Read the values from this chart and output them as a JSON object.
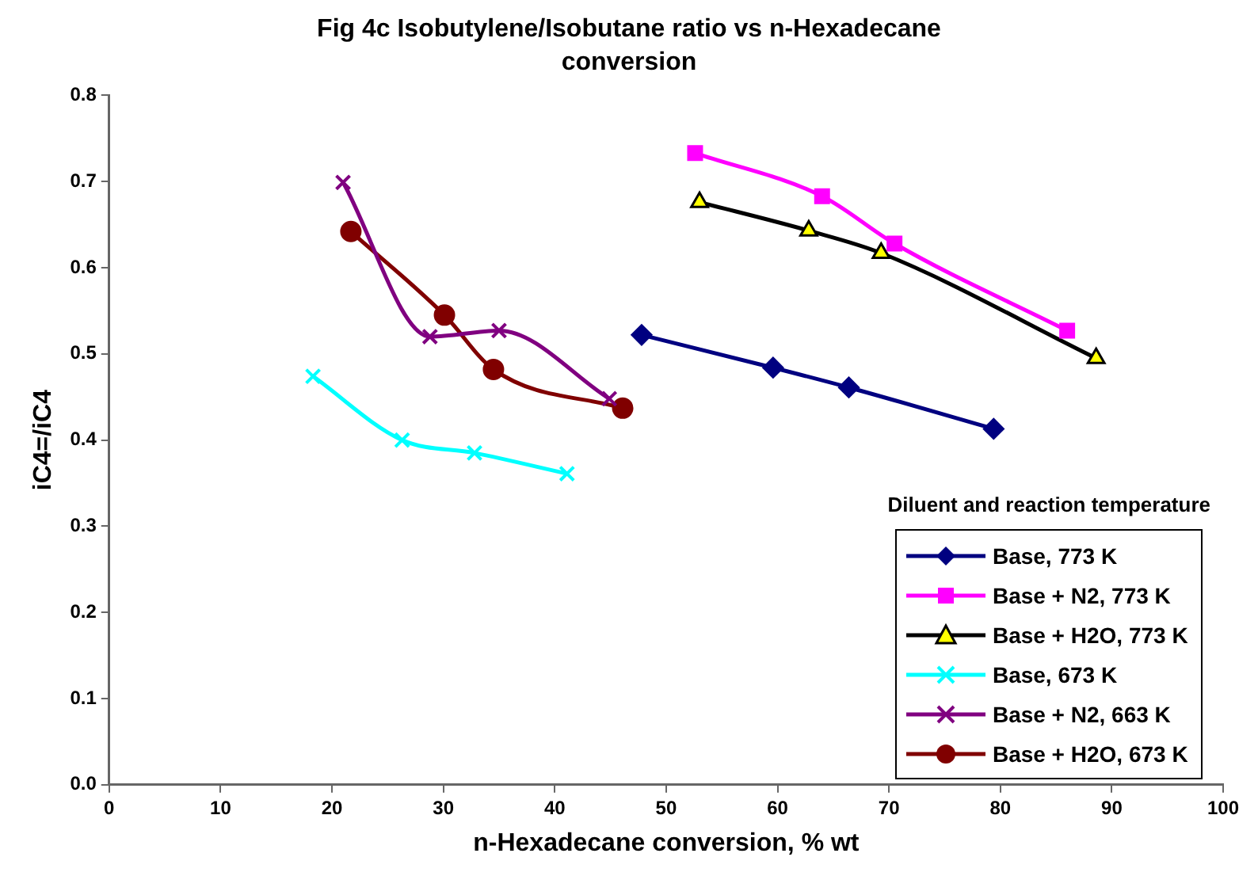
{
  "chart_data": {
    "type": "line",
    "title": "Fig 4c Isobutylene/Isobutane ratio vs n-Hexadecane conversion",
    "xlabel": "n-Hexadecane conversion, % wt",
    "ylabel": "iC4=/iC4",
    "legend_title": "Diluent and reaction temperature",
    "legend": "bottom right",
    "grid": false,
    "xlim": [
      0,
      100
    ],
    "xticks": [
      0,
      10,
      20,
      30,
      40,
      50,
      60,
      70,
      80,
      90,
      100
    ],
    "ylim": [
      0,
      0.8
    ],
    "yticks": [
      {
        "value": 0,
        "label": "0.0"
      },
      {
        "value": 0.1,
        "label": "0.1"
      },
      {
        "value": 0.2,
        "label": "0.2"
      },
      {
        "value": 0.3,
        "label": "0.3"
      },
      {
        "value": 0.4,
        "label": "0.4"
      },
      {
        "value": 0.5,
        "label": "0.5"
      },
      {
        "value": 0.6,
        "label": "0.6"
      },
      {
        "value": 0.7,
        "label": "0.7"
      },
      {
        "value": 0.8,
        "label": "0.8"
      }
    ],
    "series": [
      {
        "name": "Base, 773 K",
        "color": "#000080",
        "marker": "diamond",
        "x": [
          47.8,
          59.6,
          66.4,
          79.4
        ],
        "values": [
          0.522,
          0.484,
          0.461,
          0.413
        ]
      },
      {
        "name": "Base + N2, 773 K",
        "color": "#ff00ff",
        "marker": "square",
        "x": [
          52.6,
          64,
          70.5,
          86
        ],
        "values": [
          0.733,
          0.683,
          0.628,
          0.527
        ]
      },
      {
        "name": "Base + H2O, 773 K",
        "color": "#000000",
        "marker": "triangle",
        "x": [
          53,
          62.8,
          69.3,
          88.6
        ],
        "values": [
          0.676,
          0.643,
          0.617,
          0.495
        ]
      },
      {
        "name": "Base, 673 K",
        "color": "#00ffff",
        "marker": "cross",
        "x": [
          18.3,
          26.3,
          32.8,
          41.1
        ],
        "values": [
          0.474,
          0.4,
          0.385,
          0.361
        ]
      },
      {
        "name": "Base + N2, 663 K",
        "color": "#800080",
        "marker": "cross",
        "x": [
          21,
          28.8,
          35,
          44.9
        ],
        "values": [
          0.699,
          0.52,
          0.527,
          0.448
        ]
      },
      {
        "name": "Base + H2O, 673 K",
        "color": "#800000",
        "marker": "circle",
        "x": [
          21.7,
          30.1,
          34.5,
          46.1
        ],
        "values": [
          0.642,
          0.545,
          0.482,
          0.437
        ]
      }
    ]
  }
}
